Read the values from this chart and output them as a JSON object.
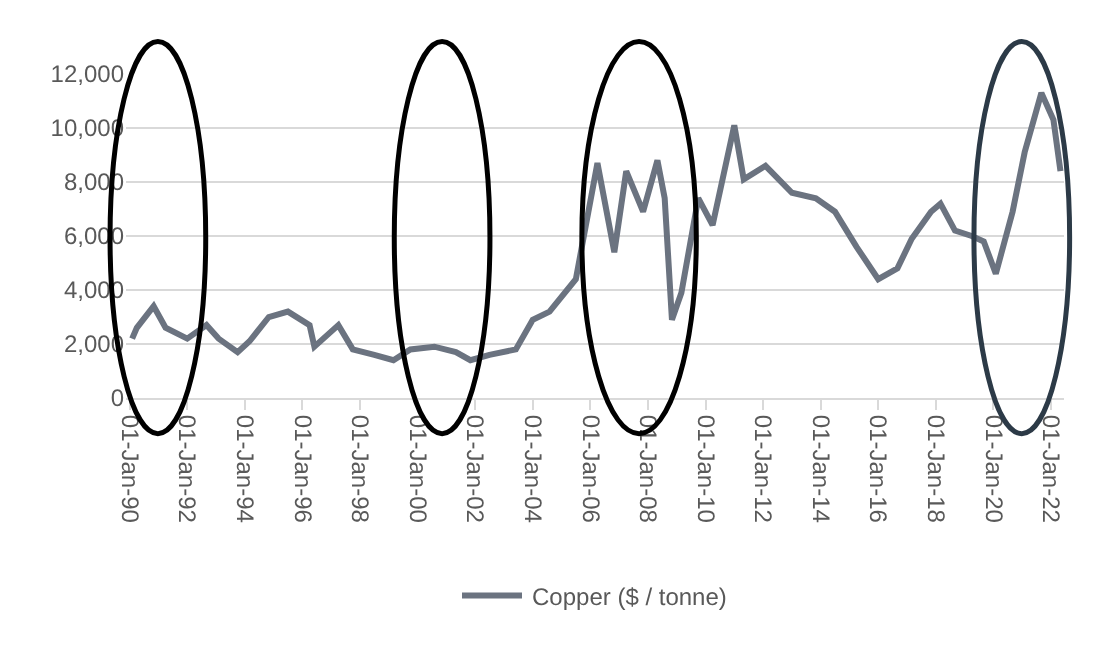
{
  "chart_data": {
    "type": "line",
    "x": [
      "1990-02",
      "1990-04",
      "1990-11",
      "1991-04",
      "1992-01",
      "1992-09",
      "1993-02",
      "1993-10",
      "1994-03",
      "1994-11",
      "1995-07",
      "1996-04",
      "1996-06",
      "1997-04",
      "1997-10",
      "1998-07",
      "1999-03",
      "1999-10",
      "2000-08",
      "2001-05",
      "2001-11",
      "2002-07",
      "2003-06",
      "2004-01",
      "2004-08",
      "2005-07",
      "2006-04",
      "2006-11",
      "2007-04",
      "2007-11",
      "2008-05",
      "2008-08",
      "2008-11",
      "2009-03",
      "2009-10",
      "2010-04",
      "2011-01",
      "2011-05",
      "2012-02",
      "2013-01",
      "2013-11",
      "2014-07",
      "2015-04",
      "2016-01",
      "2016-09",
      "2017-03",
      "2017-11",
      "2018-03",
      "2018-09",
      "2019-04",
      "2019-09",
      "2020-02",
      "2020-09",
      "2021-02",
      "2021-09",
      "2022-02",
      "2022-05"
    ],
    "series": [
      {
        "name": "Copper ($ / tonne)",
        "color": "#6b7380",
        "values": [
          2200,
          2600,
          3400,
          2600,
          2200,
          2700,
          2200,
          1700,
          2100,
          3000,
          3200,
          2700,
          1900,
          2700,
          1800,
          1600,
          1400,
          1800,
          1900,
          1700,
          1400,
          1600,
          1800,
          2900,
          3200,
          4400,
          8700,
          5400,
          8400,
          6900,
          8800,
          7400,
          2900,
          3900,
          7400,
          6400,
          10100,
          8100,
          8600,
          7600,
          7400,
          6900,
          5600,
          4400,
          4800,
          5900,
          6900,
          7200,
          6200,
          6000,
          5800,
          4600,
          6900,
          9100,
          11300,
          10300,
          8400
        ]
      }
    ],
    "xlim": [
      "1989-11-15",
      "2022-06-15"
    ],
    "xticks": [
      {
        "value": "1990-01-01",
        "label": "01-Jan-90"
      },
      {
        "value": "1992-01-01",
        "label": "01-Jan-92"
      },
      {
        "value": "1994-01-01",
        "label": "01-Jan-94"
      },
      {
        "value": "1996-01-01",
        "label": "01-Jan-96"
      },
      {
        "value": "1998-01-01",
        "label": "01-Jan-98"
      },
      {
        "value": "2000-01-01",
        "label": "01-Jan-00"
      },
      {
        "value": "2002-01-01",
        "label": "01-Jan-02"
      },
      {
        "value": "2004-01-01",
        "label": "01-Jan-04"
      },
      {
        "value": "2006-01-01",
        "label": "01-Jan-06"
      },
      {
        "value": "2008-01-01",
        "label": "01-Jan-08"
      },
      {
        "value": "2010-01-01",
        "label": "01-Jan-10"
      },
      {
        "value": "2012-01-01",
        "label": "01-Jan-12"
      },
      {
        "value": "2014-01-01",
        "label": "01-Jan-14"
      },
      {
        "value": "2016-01-01",
        "label": "01-Jan-16"
      },
      {
        "value": "2018-01-01",
        "label": "01-Jan-18"
      },
      {
        "value": "2020-01-01",
        "label": "01-Jan-20"
      },
      {
        "value": "2022-01-01",
        "label": "01-Jan-22"
      }
    ],
    "ylim": [
      0,
      12000
    ],
    "yticks": [
      {
        "value": 0,
        "label": "0"
      },
      {
        "value": 2000,
        "label": "2,000"
      },
      {
        "value": 4000,
        "label": "4,000"
      },
      {
        "value": 6000,
        "label": "6,000"
      },
      {
        "value": 8000,
        "label": "8,000"
      },
      {
        "value": 10000,
        "label": "10,000"
      },
      {
        "value": 12000,
        "label": "12,000"
      }
    ],
    "grid": "y",
    "legend": "bottom",
    "marker": "none",
    "line_style": "solid"
  }
}
